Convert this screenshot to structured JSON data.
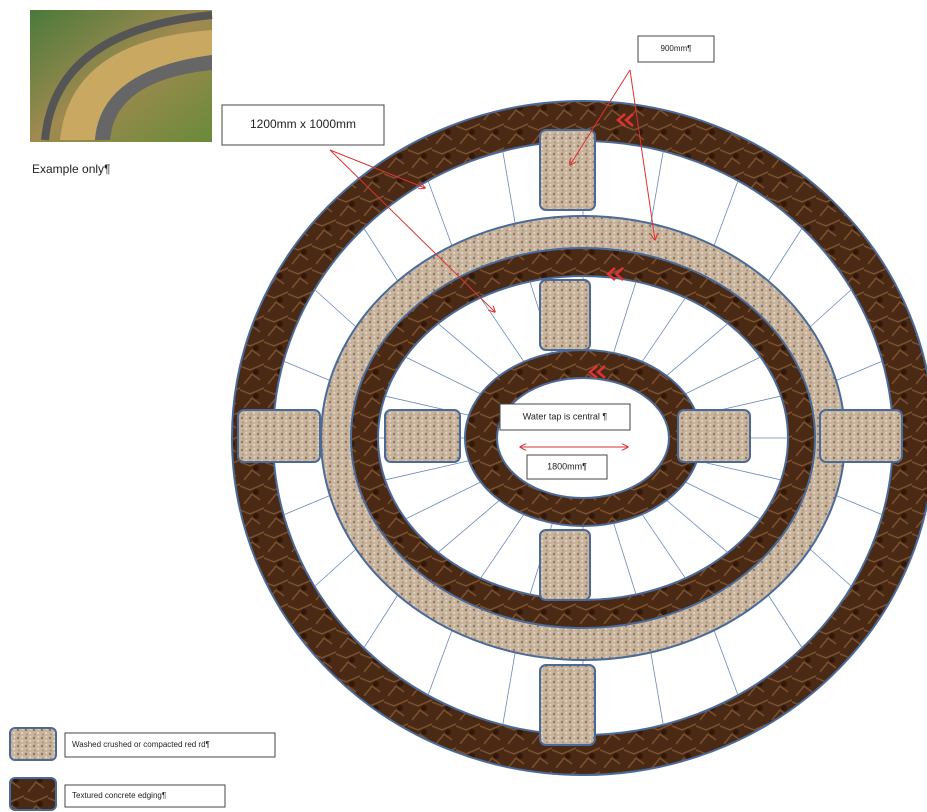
{
  "labels": {
    "size_box": "1200mm x 1000mm",
    "path_width": "900mm¶",
    "example": "Example only¶",
    "tap": "Water tap is central ¶",
    "diameter": "1800mm¶"
  },
  "legend": [
    {
      "label": "Washed crushed or compacted red rd¶"
    },
    {
      "label": "Textured concrete edging¶"
    }
  ]
}
